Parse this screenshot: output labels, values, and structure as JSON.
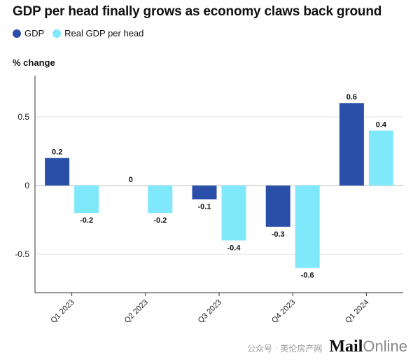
{
  "chart_data": {
    "type": "bar",
    "title": "GDP per head finally grows as economy claws back ground",
    "ylabel": "% change",
    "categories": [
      "Q1 2023",
      "Q2 2023",
      "Q3 2023",
      "Q4 2023",
      "Q1 2024"
    ],
    "series": [
      {
        "name": "GDP",
        "color": "#2a4fa8",
        "values": [
          0.2,
          0,
          -0.1,
          -0.3,
          0.6
        ],
        "labels": [
          "0.2",
          "0",
          "-0.1",
          "-0.3",
          "0.6"
        ]
      },
      {
        "name": "Real GDP per head",
        "color": "#7fe9fb",
        "values": [
          -0.2,
          -0.2,
          -0.4,
          -0.6,
          0.4
        ],
        "labels": [
          "-0.2",
          "-0.2",
          "-0.4",
          "-0.6",
          "0.4"
        ]
      }
    ],
    "ylim": [
      -0.78,
      0.8
    ],
    "yticks": [
      0.5,
      0,
      -0.5
    ],
    "ytick_labels": [
      "0.5",
      "0",
      "-0.5"
    ],
    "grid": true,
    "legend": "top-left"
  },
  "watermark": {
    "cn_text": "公众号 · 英伦房产网",
    "brand_bold": "Mail",
    "brand_light": "Online"
  }
}
